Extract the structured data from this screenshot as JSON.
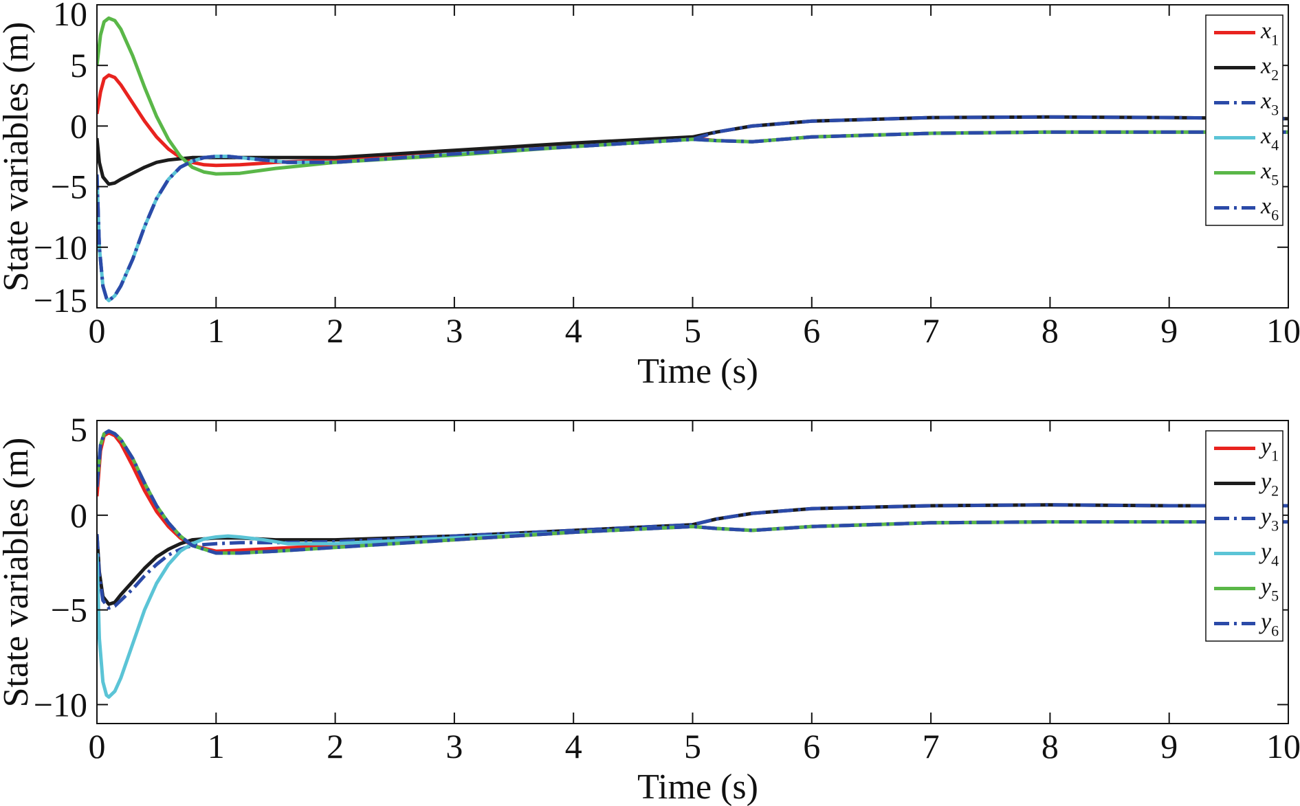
{
  "chart_data": [
    {
      "type": "line",
      "title": "",
      "xlabel": "Time (s)",
      "ylabel": "State variables (m)",
      "xlim": [
        0,
        10
      ],
      "ylim": [
        -15,
        10
      ],
      "xticks": [
        0,
        1,
        2,
        3,
        4,
        5,
        6,
        7,
        8,
        9,
        10
      ],
      "xtick_labels": [
        "0",
        "1",
        "2",
        "3",
        "4",
        "5",
        "6",
        "7",
        "8",
        "9",
        "10"
      ],
      "yticks": [
        10,
        5,
        0,
        -5,
        -10,
        -15
      ],
      "ytick_labels": [
        "10",
        "5",
        "0",
        "−5",
        "−10",
        "−15"
      ],
      "grid": false,
      "legend_position": "top-right",
      "series": [
        {
          "name": "x",
          "subscript": "1",
          "color": "#e8231f",
          "dash": "solid",
          "x": [
            0,
            0.03,
            0.06,
            0.1,
            0.15,
            0.2,
            0.3,
            0.4,
            0.5,
            0.6,
            0.7,
            0.8,
            0.9,
            1.0,
            1.2,
            1.5,
            2,
            3,
            4,
            5,
            5.2,
            5.5,
            6,
            7,
            8,
            9,
            10
          ],
          "y": [
            1.0,
            2.8,
            3.9,
            4.2,
            4.0,
            3.4,
            1.9,
            0.4,
            -0.9,
            -1.9,
            -2.6,
            -3.0,
            -3.2,
            -3.25,
            -3.2,
            -3.0,
            -2.8,
            -2.2,
            -1.6,
            -1.0,
            -1.2,
            -1.3,
            -0.9,
            -0.6,
            -0.5,
            -0.5,
            -0.5
          ]
        },
        {
          "name": "x",
          "subscript": "2",
          "color": "#1c1c1c",
          "dash": "solid",
          "x": [
            0,
            0.02,
            0.05,
            0.1,
            0.15,
            0.2,
            0.3,
            0.4,
            0.5,
            0.6,
            0.8,
            1.0,
            1.5,
            2,
            3,
            4,
            5,
            5.2,
            5.5,
            6,
            7,
            8,
            9,
            10
          ],
          "y": [
            -1.0,
            -3.0,
            -4.2,
            -4.8,
            -4.7,
            -4.4,
            -3.9,
            -3.4,
            -3.0,
            -2.8,
            -2.6,
            -2.6,
            -2.6,
            -2.6,
            -2.0,
            -1.4,
            -0.9,
            -0.5,
            0.0,
            0.4,
            0.7,
            0.75,
            0.7,
            0.6
          ]
        },
        {
          "name": "x",
          "subscript": "3",
          "color": "#2b4aa8",
          "dash": "dashdot",
          "x": [
            0,
            0.02,
            0.05,
            0.08,
            0.1,
            0.15,
            0.2,
            0.3,
            0.4,
            0.5,
            0.6,
            0.7,
            0.8,
            0.9,
            1.0,
            1.1,
            1.2,
            1.4,
            1.6,
            2,
            3,
            4,
            5,
            5.2,
            5.5,
            6,
            7,
            8,
            9,
            10
          ],
          "y": [
            -4.0,
            -10.0,
            -13.2,
            -14.2,
            -14.4,
            -14.0,
            -13.2,
            -11.0,
            -8.3,
            -6.0,
            -4.4,
            -3.4,
            -2.9,
            -2.6,
            -2.5,
            -2.5,
            -2.6,
            -2.8,
            -3.0,
            -3.0,
            -2.3,
            -1.7,
            -1.1,
            -0.5,
            0.0,
            0.4,
            0.7,
            0.75,
            0.7,
            0.6
          ]
        },
        {
          "name": "x",
          "subscript": "4",
          "color": "#5bc4d6",
          "dash": "solid",
          "x": [
            0,
            0.02,
            0.05,
            0.08,
            0.1,
            0.15,
            0.2,
            0.3,
            0.4,
            0.5,
            0.6,
            0.7,
            0.8,
            0.9,
            1.0,
            1.1,
            1.2,
            1.4,
            1.6,
            2,
            3,
            4,
            5,
            5.2,
            5.5,
            6,
            7,
            8,
            9,
            10
          ],
          "y": [
            -4.0,
            -10.0,
            -13.2,
            -14.2,
            -14.4,
            -14.0,
            -13.2,
            -11.0,
            -8.3,
            -6.0,
            -4.4,
            -3.4,
            -2.9,
            -2.6,
            -2.5,
            -2.5,
            -2.6,
            -2.8,
            -3.0,
            -3.0,
            -2.3,
            -1.7,
            -1.1,
            -1.2,
            -1.3,
            -0.9,
            -0.6,
            -0.5,
            -0.5,
            -0.5
          ]
        },
        {
          "name": "x",
          "subscript": "5",
          "color": "#5ab748",
          "dash": "solid",
          "x": [
            0,
            0.03,
            0.06,
            0.1,
            0.15,
            0.2,
            0.3,
            0.4,
            0.5,
            0.6,
            0.7,
            0.8,
            0.9,
            1.0,
            1.2,
            1.5,
            2,
            3,
            4,
            5,
            5.2,
            5.5,
            6,
            7,
            8,
            9,
            10
          ],
          "y": [
            5.0,
            7.5,
            8.6,
            8.9,
            8.7,
            8.0,
            5.8,
            3.2,
            0.8,
            -1.1,
            -2.5,
            -3.4,
            -3.8,
            -3.95,
            -3.9,
            -3.5,
            -3.0,
            -2.4,
            -1.7,
            -1.1,
            -1.2,
            -1.3,
            -0.9,
            -0.6,
            -0.5,
            -0.5,
            -0.5
          ]
        },
        {
          "name": "x",
          "subscript": "6",
          "color": "#2b4aa8",
          "dash": "dashdot",
          "x": [
            0,
            0.02,
            0.05,
            0.08,
            0.1,
            0.15,
            0.2,
            0.3,
            0.4,
            0.5,
            0.6,
            0.7,
            0.8,
            0.9,
            1.0,
            1.1,
            1.2,
            1.4,
            1.6,
            2,
            3,
            4,
            5,
            5.2,
            5.5,
            6,
            7,
            8,
            9,
            10
          ],
          "y": [
            -4.0,
            -10.0,
            -13.2,
            -14.2,
            -14.4,
            -14.0,
            -13.2,
            -11.0,
            -8.3,
            -6.0,
            -4.4,
            -3.4,
            -2.9,
            -2.6,
            -2.5,
            -2.5,
            -2.6,
            -2.8,
            -3.0,
            -3.0,
            -2.3,
            -1.7,
            -1.1,
            -1.2,
            -1.3,
            -0.9,
            -0.6,
            -0.5,
            -0.5,
            -0.5
          ]
        }
      ]
    },
    {
      "type": "line",
      "title": "",
      "xlabel": "Time (s)",
      "ylabel": "State variables (m)",
      "xlim": [
        0,
        10
      ],
      "ylim": [
        -11,
        5
      ],
      "xticks": [
        0,
        1,
        2,
        3,
        4,
        5,
        6,
        7,
        8,
        9,
        10
      ],
      "xtick_labels": [
        "0",
        "1",
        "2",
        "3",
        "4",
        "5",
        "6",
        "7",
        "8",
        "9",
        "10"
      ],
      "yticks": [
        5,
        0,
        -5,
        -10
      ],
      "ytick_labels": [
        "5",
        "0",
        "−5",
        "−10"
      ],
      "grid": false,
      "legend_position": "top-right",
      "series": [
        {
          "name": "y",
          "subscript": "1",
          "color": "#e8231f",
          "dash": "solid",
          "x": [
            0,
            0.03,
            0.06,
            0.1,
            0.15,
            0.2,
            0.3,
            0.4,
            0.5,
            0.6,
            0.7,
            0.8,
            1.0,
            1.2,
            1.5,
            2,
            3,
            4,
            5,
            5.2,
            5.5,
            6,
            7,
            8,
            9,
            10
          ],
          "y": [
            1.0,
            3.4,
            4.2,
            4.35,
            4.2,
            3.8,
            2.6,
            1.3,
            0.2,
            -0.6,
            -1.2,
            -1.6,
            -1.9,
            -1.85,
            -1.75,
            -1.6,
            -1.3,
            -0.9,
            -0.6,
            -0.7,
            -0.8,
            -0.6,
            -0.4,
            -0.35,
            -0.35,
            -0.35
          ]
        },
        {
          "name": "y",
          "subscript": "2",
          "color": "#1c1c1c",
          "dash": "solid",
          "x": [
            0,
            0.02,
            0.05,
            0.1,
            0.15,
            0.2,
            0.3,
            0.4,
            0.5,
            0.6,
            0.7,
            0.8,
            1.0,
            1.2,
            1.5,
            2,
            3,
            4,
            5,
            5.2,
            5.5,
            6,
            7,
            8,
            9,
            10
          ],
          "y": [
            -1.0,
            -3.0,
            -4.3,
            -4.7,
            -4.6,
            -4.2,
            -3.5,
            -2.8,
            -2.2,
            -1.8,
            -1.5,
            -1.3,
            -1.2,
            -1.2,
            -1.3,
            -1.3,
            -1.1,
            -0.8,
            -0.5,
            -0.2,
            0.1,
            0.35,
            0.5,
            0.55,
            0.5,
            0.5
          ]
        },
        {
          "name": "y",
          "subscript": "3",
          "color": "#2b4aa8",
          "dash": "dashdot",
          "x": [
            0,
            0.02,
            0.05,
            0.1,
            0.15,
            0.2,
            0.3,
            0.4,
            0.5,
            0.6,
            0.7,
            0.8,
            1.0,
            1.2,
            1.5,
            2,
            3,
            4,
            5,
            5.2,
            5.5,
            6,
            7,
            8,
            9,
            10
          ],
          "y": [
            -1.0,
            -3.2,
            -4.5,
            -4.9,
            -4.8,
            -4.5,
            -3.9,
            -3.2,
            -2.6,
            -2.1,
            -1.8,
            -1.6,
            -1.5,
            -1.45,
            -1.45,
            -1.4,
            -1.1,
            -0.8,
            -0.5,
            -0.2,
            0.1,
            0.35,
            0.5,
            0.55,
            0.5,
            0.5
          ]
        },
        {
          "name": "y",
          "subscript": "4",
          "color": "#5bc4d6",
          "dash": "solid",
          "x": [
            0,
            0.02,
            0.05,
            0.08,
            0.1,
            0.15,
            0.2,
            0.3,
            0.4,
            0.5,
            0.6,
            0.7,
            0.8,
            0.9,
            1.0,
            1.1,
            1.2,
            1.4,
            1.6,
            2,
            3,
            4,
            5,
            5.2,
            5.5,
            6,
            7,
            8,
            9,
            10
          ],
          "y": [
            -2.0,
            -6.5,
            -8.8,
            -9.5,
            -9.6,
            -9.3,
            -8.6,
            -6.8,
            -5.0,
            -3.6,
            -2.6,
            -1.9,
            -1.5,
            -1.25,
            -1.15,
            -1.1,
            -1.15,
            -1.3,
            -1.5,
            -1.5,
            -1.2,
            -0.9,
            -0.6,
            -0.7,
            -0.8,
            -0.6,
            -0.4,
            -0.35,
            -0.35,
            -0.35
          ]
        },
        {
          "name": "y",
          "subscript": "5",
          "color": "#5ab748",
          "dash": "solid",
          "x": [
            0,
            0.03,
            0.06,
            0.1,
            0.15,
            0.2,
            0.3,
            0.4,
            0.5,
            0.6,
            0.7,
            0.8,
            1.0,
            1.2,
            1.5,
            2,
            3,
            4,
            5,
            5.2,
            5.5,
            6,
            7,
            8,
            9,
            10
          ],
          "y": [
            1.5,
            3.7,
            4.3,
            4.45,
            4.3,
            4.0,
            3.0,
            1.7,
            0.5,
            -0.4,
            -1.1,
            -1.6,
            -2.0,
            -2.0,
            -1.9,
            -1.7,
            -1.3,
            -0.9,
            -0.6,
            -0.7,
            -0.8,
            -0.6,
            -0.4,
            -0.35,
            -0.35,
            -0.35
          ]
        },
        {
          "name": "y",
          "subscript": "6",
          "color": "#2b4aa8",
          "dash": "dashdot",
          "x": [
            0,
            0.03,
            0.06,
            0.1,
            0.15,
            0.2,
            0.3,
            0.4,
            0.5,
            0.6,
            0.7,
            0.8,
            1.0,
            1.2,
            1.5,
            2,
            3,
            4,
            5,
            5.2,
            5.5,
            6,
            7,
            8,
            9,
            10
          ],
          "y": [
            1.5,
            3.7,
            4.3,
            4.45,
            4.3,
            4.0,
            3.0,
            1.7,
            0.5,
            -0.4,
            -1.1,
            -1.6,
            -2.0,
            -2.0,
            -1.9,
            -1.7,
            -1.3,
            -0.9,
            -0.6,
            -0.7,
            -0.8,
            -0.6,
            -0.4,
            -0.35,
            -0.35,
            -0.35
          ]
        }
      ]
    }
  ]
}
